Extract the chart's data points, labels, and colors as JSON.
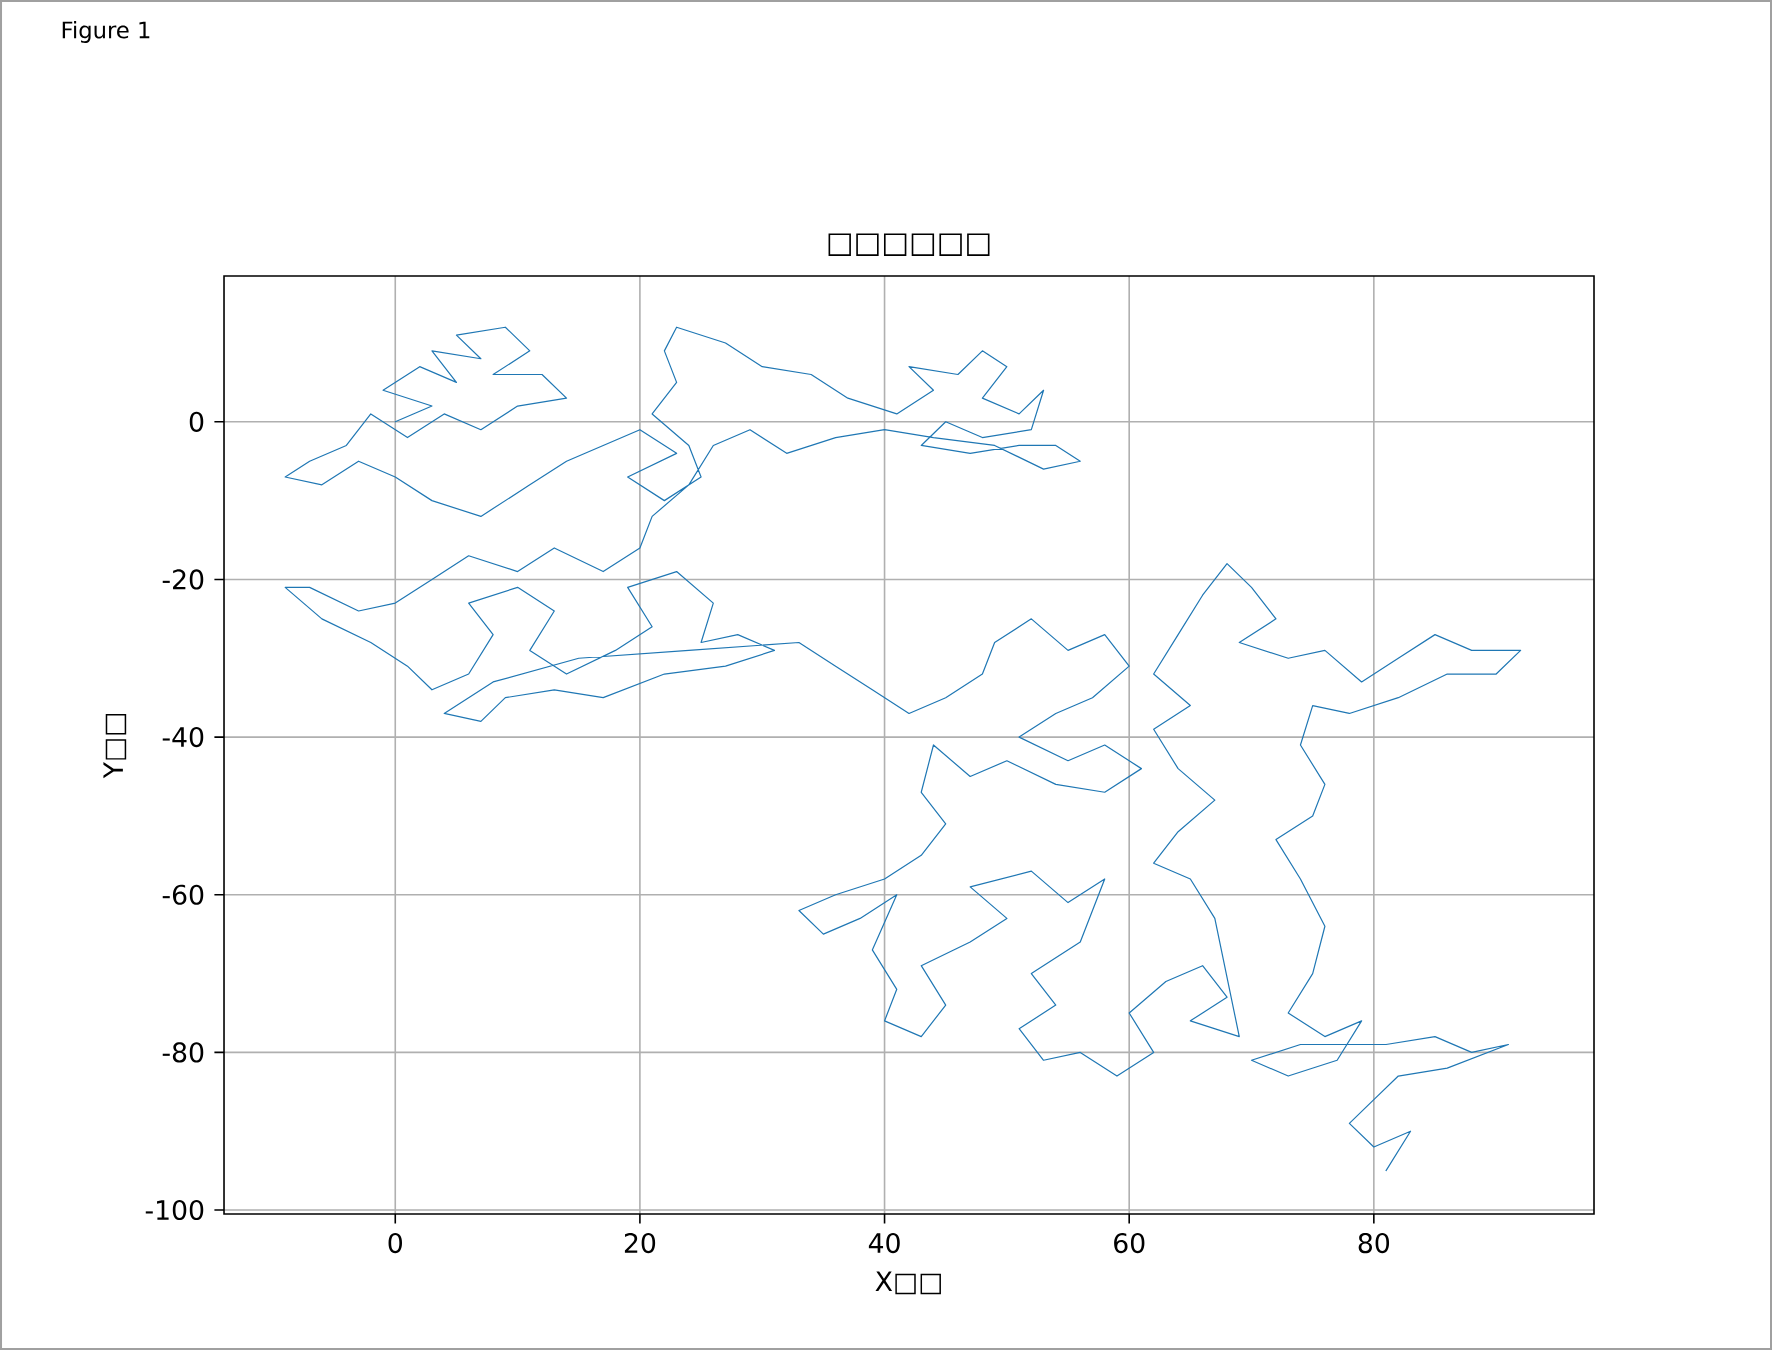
{
  "chart_data": {
    "type": "line",
    "title": "□□□□□□",
    "xlabel": "X□□",
    "ylabel": "Y□□",
    "annotations": [
      "Figure 1"
    ],
    "x": [
      0,
      3,
      -1,
      2,
      5,
      3,
      7,
      5,
      9,
      11,
      8,
      12,
      14,
      10,
      7,
      4,
      1,
      -2,
      -4,
      -7,
      -9,
      -6,
      -3,
      0,
      3,
      7,
      11,
      14,
      17,
      20,
      23,
      19,
      22,
      25,
      24,
      21,
      23,
      22,
      23,
      27,
      30,
      34,
      37,
      41,
      44,
      42,
      46,
      48,
      50,
      48,
      51,
      53,
      52,
      48,
      45,
      43,
      47,
      51,
      54,
      56,
      53,
      49,
      44,
      40,
      36,
      32,
      29,
      26,
      24,
      21,
      20,
      17,
      13,
      10,
      6,
      3,
      0,
      -3,
      -7,
      -9,
      -6,
      -2,
      1,
      3,
      6,
      8,
      6,
      10,
      13,
      11,
      14,
      18,
      21,
      19,
      23,
      26,
      25,
      28,
      31,
      27,
      22,
      17,
      13,
      9,
      7,
      4,
      8,
      15,
      24,
      33,
      36,
      39,
      42,
      45,
      48,
      49,
      52,
      55,
      58,
      60,
      57,
      54,
      51,
      55,
      58,
      61,
      58,
      54,
      50,
      47,
      44,
      43,
      45,
      43,
      40,
      36,
      33,
      35,
      38,
      41,
      39,
      41,
      40,
      43,
      45,
      43,
      47,
      50,
      47,
      52,
      55,
      58,
      56,
      52,
      54,
      51,
      53,
      56,
      59,
      62,
      60,
      63,
      66,
      68,
      65,
      69,
      67,
      65,
      62,
      64,
      67,
      64,
      62,
      65,
      62,
      64,
      66,
      68,
      70,
      72,
      69,
      73,
      76,
      79,
      82,
      85,
      88,
      92,
      90,
      86,
      82,
      78,
      75,
      74,
      76,
      75,
      72,
      74,
      76,
      75,
      73,
      76,
      79,
      77,
      73,
      70,
      74,
      81,
      85,
      88,
      91,
      86,
      82,
      80,
      78,
      80,
      83,
      81
    ],
    "series": [
      {
        "color": "#1f77b4",
        "values": [
          0,
          2,
          4,
          7,
          5,
          9,
          8,
          11,
          12,
          9,
          6,
          6,
          3,
          2,
          -1,
          1,
          -2,
          1,
          -3,
          -5,
          -7,
          -8,
          -5,
          -7,
          -10,
          -12,
          -8,
          -5,
          -3,
          -1,
          -4,
          -7,
          -10,
          -7,
          -3,
          1,
          5,
          9,
          12,
          10,
          7,
          6,
          3,
          1,
          4,
          7,
          6,
          9,
          7,
          3,
          1,
          4,
          -1,
          -2,
          0,
          -3,
          -4,
          -3,
          -3,
          -5,
          -6,
          -3,
          -2,
          -1,
          -2,
          -4,
          -1,
          -3,
          -8,
          -12,
          -16,
          -19,
          -16,
          -19,
          -17,
          -20,
          -23,
          -24,
          -21,
          -21,
          -25,
          -28,
          -31,
          -34,
          -32,
          -27,
          -23,
          -21,
          -24,
          -29,
          -32,
          -29,
          -26,
          -21,
          -19,
          -23,
          -28,
          -27,
          -29,
          -31,
          -32,
          -35,
          -34,
          -35,
          -38,
          -37,
          -33,
          -30,
          -29,
          -28,
          -31,
          -34,
          -37,
          -35,
          -32,
          -28,
          -25,
          -29,
          -27,
          -31,
          -35,
          -37,
          -40,
          -43,
          -41,
          -44,
          -47,
          -46,
          -43,
          -45,
          -41,
          -47,
          -51,
          -55,
          -58,
          -60,
          -62,
          -65,
          -63,
          -60,
          -67,
          -72,
          -76,
          -78,
          -74,
          -69,
          -66,
          -63,
          -59,
          -57,
          -61,
          -58,
          -66,
          -70,
          -74,
          -77,
          -81,
          -80,
          -83,
          -80,
          -75,
          -71,
          -69,
          -73,
          -76,
          -78,
          -63,
          -58,
          -56,
          -52,
          -48,
          -44,
          -39,
          -36,
          -32,
          -27,
          -22,
          -18,
          -21,
          -25,
          -28,
          -30,
          -29,
          -33,
          -30,
          -27,
          -29,
          -29,
          -32,
          -32,
          -35,
          -37,
          -36,
          -41,
          -46,
          -50,
          -53,
          -58,
          -64,
          -70,
          -75,
          -78,
          -76,
          -81,
          -83,
          -81,
          -79,
          -79,
          -78,
          -80,
          -79,
          -82,
          -83,
          -86,
          -89,
          -92,
          -90,
          -95
        ]
      }
    ],
    "xlim": [
      -14,
      98
    ],
    "ylim": [
      -100.5,
      18.5
    ],
    "xticks": [
      0,
      20,
      40,
      60,
      80
    ],
    "yticks": [
      -100,
      -80,
      -60,
      -40,
      -20,
      0
    ],
    "grid": true,
    "line_style": "solid"
  }
}
